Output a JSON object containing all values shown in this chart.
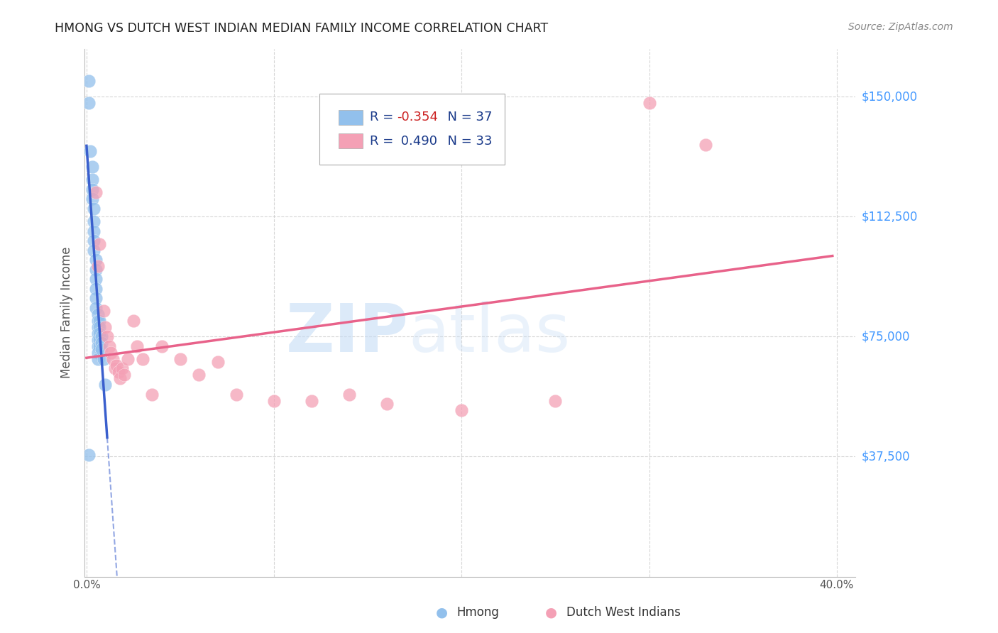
{
  "title": "HMONG VS DUTCH WEST INDIAN MEDIAN FAMILY INCOME CORRELATION CHART",
  "source": "Source: ZipAtlas.com",
  "ylabel": "Median Family Income",
  "ytick_labels": [
    "$37,500",
    "$75,000",
    "$112,500",
    "$150,000"
  ],
  "ytick_values": [
    37500,
    75000,
    112500,
    150000
  ],
  "ymin": 0,
  "ymax": 165000,
  "xmin": -0.001,
  "xmax": 0.41,
  "hmong_color": "#92C0EC",
  "dwi_color": "#F4A0B5",
  "hmong_line_color": "#3A5FCD",
  "dwi_line_color": "#E8628A",
  "background_color": "#FFFFFF",
  "grid_color": "#CCCCCC",
  "watermark_zip": "ZIP",
  "watermark_atlas": "atlas",
  "legend_r1": "R = -0.354",
  "legend_n1": "N = 37",
  "legend_r2": "R =  0.490",
  "legend_n2": "N = 33",
  "hmong_x": [
    0.001,
    0.001,
    0.002,
    0.003,
    0.003,
    0.003,
    0.003,
    0.004,
    0.004,
    0.004,
    0.004,
    0.004,
    0.005,
    0.005,
    0.005,
    0.005,
    0.005,
    0.005,
    0.006,
    0.006,
    0.006,
    0.006,
    0.006,
    0.006,
    0.006,
    0.006,
    0.007,
    0.007,
    0.007,
    0.007,
    0.007,
    0.008,
    0.008,
    0.008,
    0.009,
    0.01,
    0.001
  ],
  "hmong_y": [
    155000,
    148000,
    133000,
    128000,
    124000,
    121000,
    118000,
    115000,
    111000,
    108000,
    105000,
    102000,
    99000,
    96000,
    93000,
    90000,
    87000,
    84000,
    82000,
    80000,
    78000,
    76000,
    74000,
    72000,
    70000,
    68000,
    80000,
    78000,
    76000,
    74000,
    72000,
    75000,
    73000,
    71000,
    68000,
    60000,
    38000
  ],
  "dwi_x": [
    0.005,
    0.006,
    0.007,
    0.009,
    0.01,
    0.011,
    0.012,
    0.013,
    0.014,
    0.015,
    0.016,
    0.017,
    0.018,
    0.019,
    0.02,
    0.022,
    0.025,
    0.027,
    0.03,
    0.035,
    0.04,
    0.05,
    0.06,
    0.07,
    0.08,
    0.1,
    0.12,
    0.14,
    0.16,
    0.2,
    0.25,
    0.3,
    0.33
  ],
  "dwi_y": [
    120000,
    97000,
    104000,
    83000,
    78000,
    75000,
    72000,
    70000,
    68000,
    65000,
    66000,
    64000,
    62000,
    65000,
    63000,
    68000,
    80000,
    72000,
    68000,
    57000,
    72000,
    68000,
    63000,
    67000,
    57000,
    55000,
    55000,
    57000,
    54000,
    52000,
    55000,
    148000,
    135000
  ]
}
